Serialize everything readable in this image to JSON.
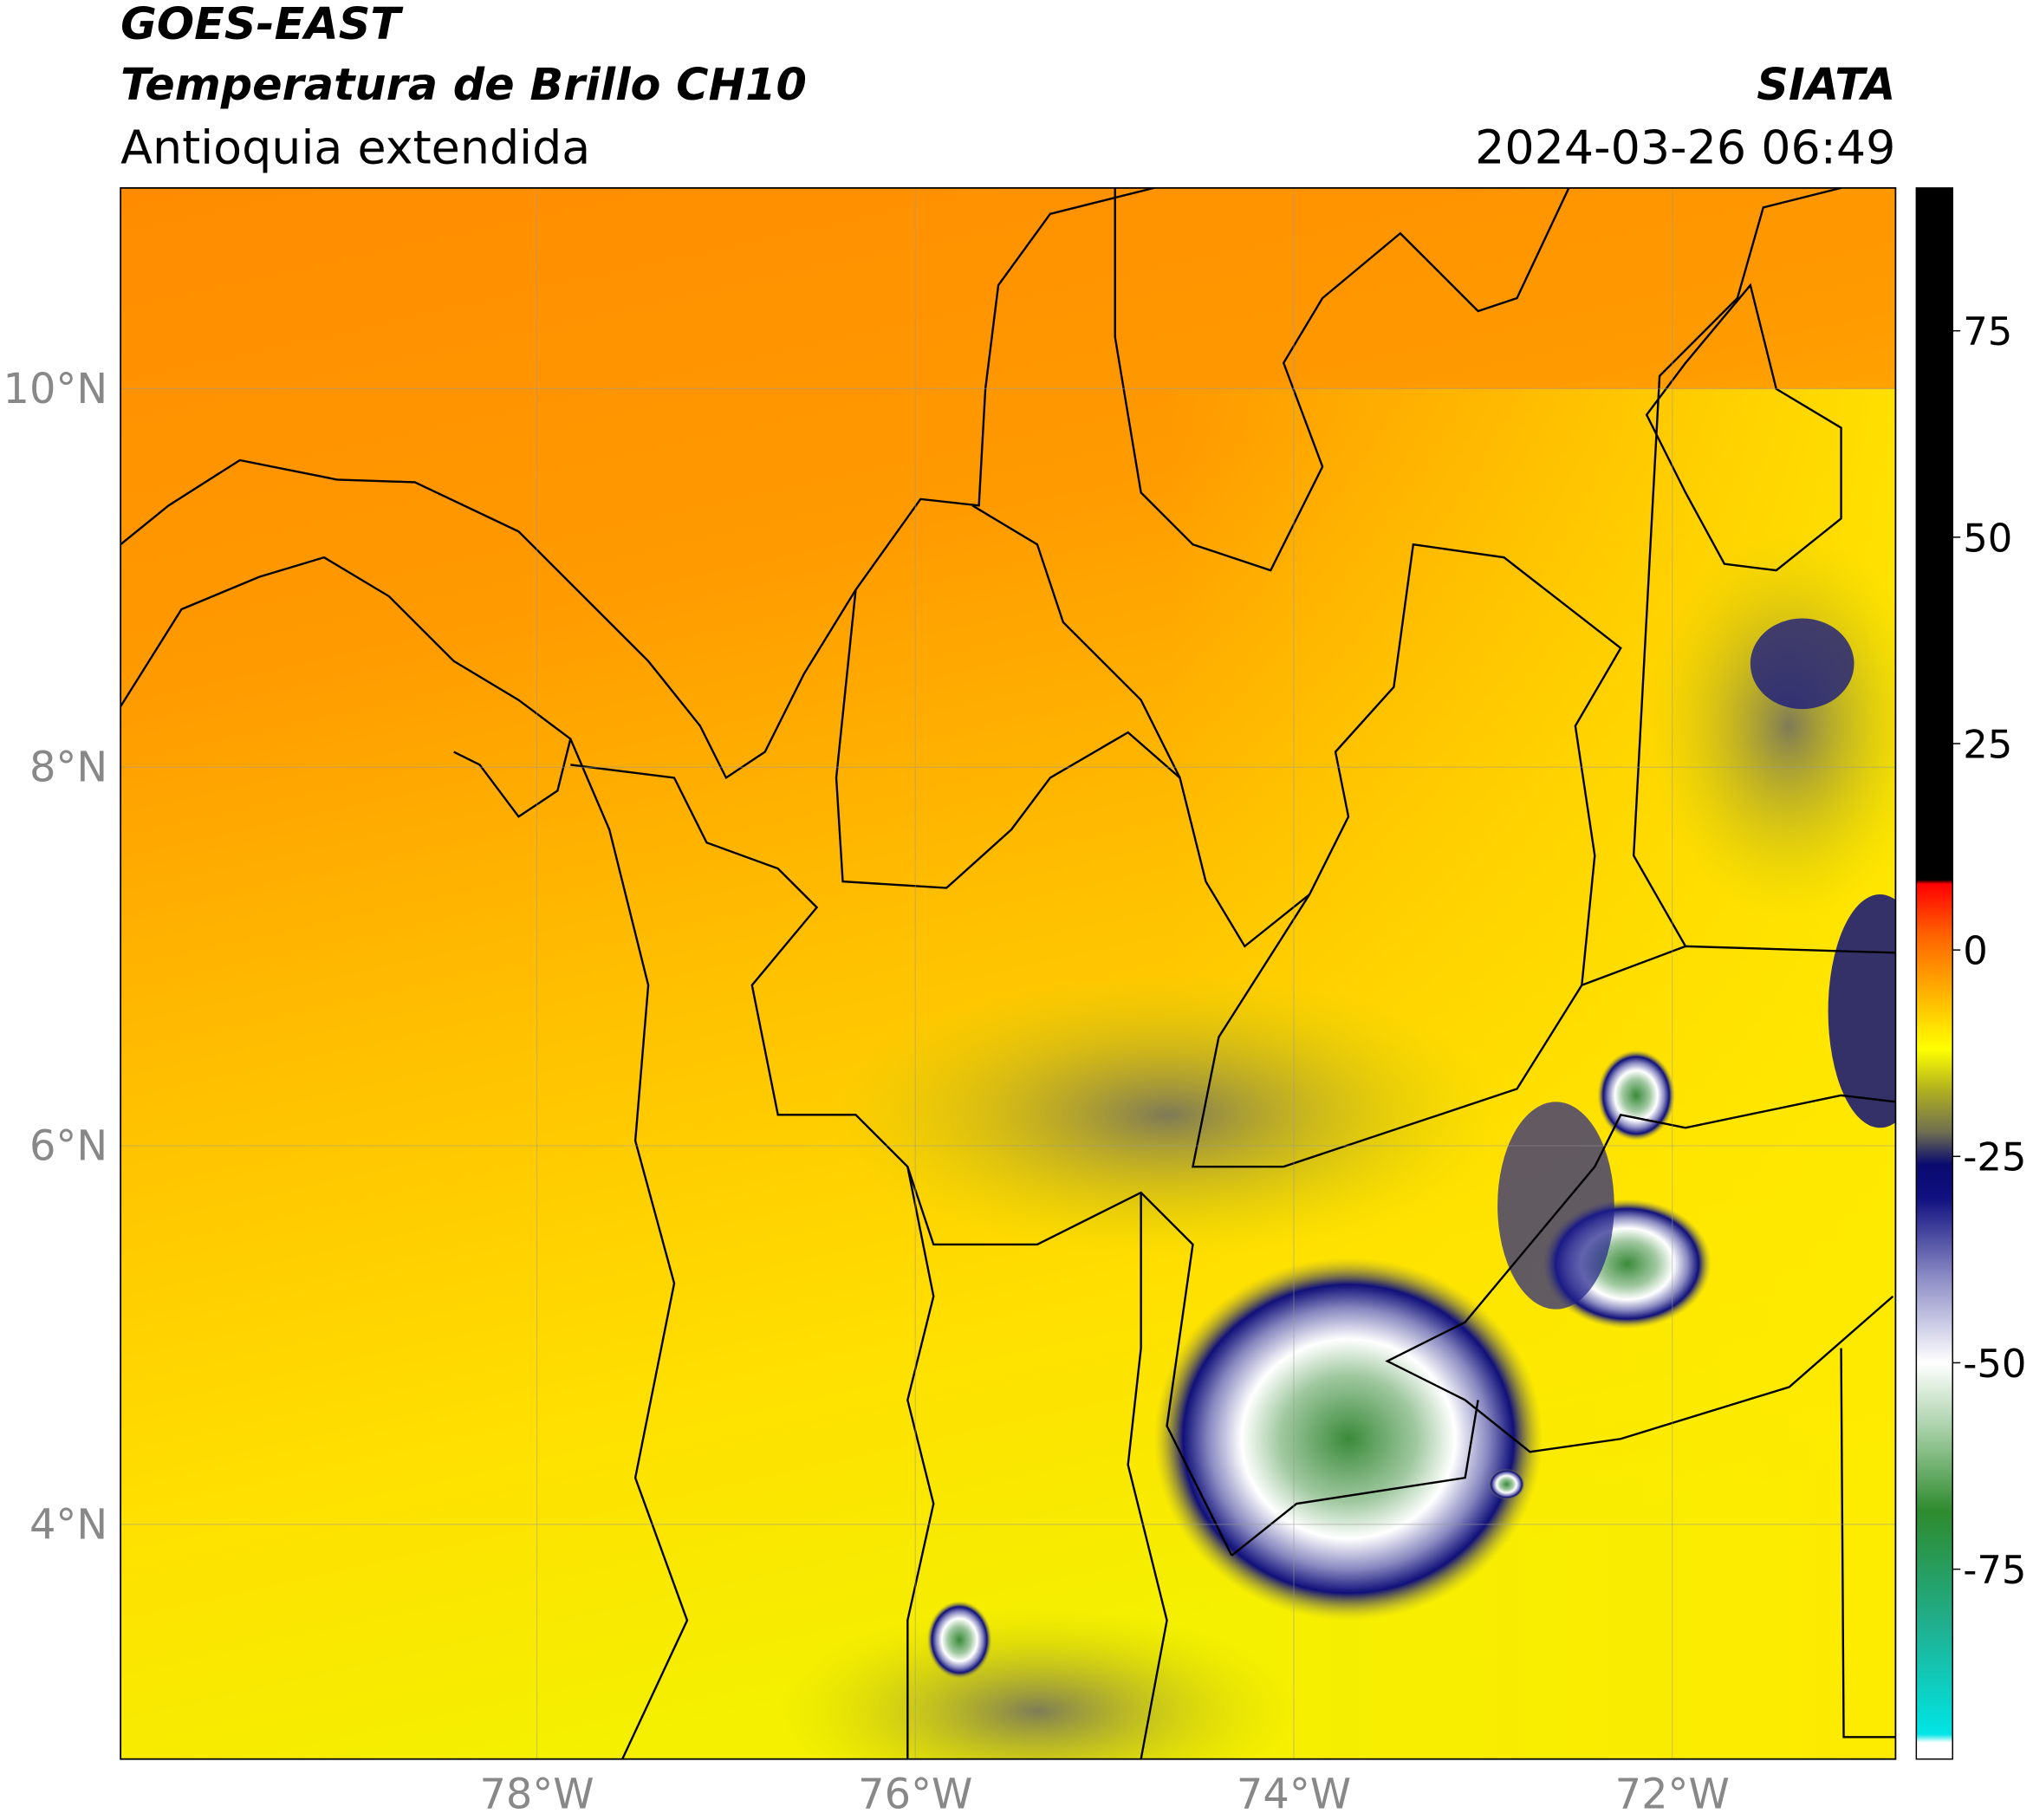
{
  "header": {
    "satellite": "GOES-EAST",
    "product": "Temperatura de Brillo CH10",
    "region": "Antioquia extendida",
    "source": "SIATA",
    "datetime": "2024-03-26 06:49"
  },
  "chart_data": {
    "type": "map",
    "xlim": [
      -80.2,
      -70.82
    ],
    "ylim": [
      2.76,
      11.06
    ],
    "xticks": [
      {
        "value": -78,
        "label": "78°W"
      },
      {
        "value": -76,
        "label": "76°W"
      },
      {
        "value": -74,
        "label": "74°W"
      },
      {
        "value": -72,
        "label": "72°W"
      }
    ],
    "yticks": [
      {
        "value": 4,
        "label": "4°N"
      },
      {
        "value": 6,
        "label": "6°N"
      },
      {
        "value": 8,
        "label": "8°N"
      },
      {
        "value": 10,
        "label": "10°N"
      }
    ],
    "grid": true,
    "colorbar": {
      "lim": [
        -98,
        92.3
      ],
      "ticks": [
        -75,
        -50,
        -25,
        0,
        25,
        50,
        75
      ],
      "stops": [
        [
          -98,
          "#ffffff"
        ],
        [
          -96,
          "#ffffff"
        ],
        [
          -95,
          "#00e5e5"
        ],
        [
          -82,
          "#20b090"
        ],
        [
          -68,
          "#2e8b2e"
        ],
        [
          -58,
          "#a8d0a8"
        ],
        [
          -50,
          "#ffffff"
        ],
        [
          -40,
          "#9090c8"
        ],
        [
          -30,
          "#101080"
        ],
        [
          -26,
          "#0a0a70"
        ],
        [
          -22,
          "#707050"
        ],
        [
          -17,
          "#b0b020"
        ],
        [
          -12,
          "#ffff00"
        ],
        [
          -5,
          "#ffb000"
        ],
        [
          2,
          "#ff6000"
        ],
        [
          8,
          "#ff0000"
        ],
        [
          8.5,
          "#000000"
        ],
        [
          92.3,
          "#000000"
        ]
      ]
    }
  }
}
